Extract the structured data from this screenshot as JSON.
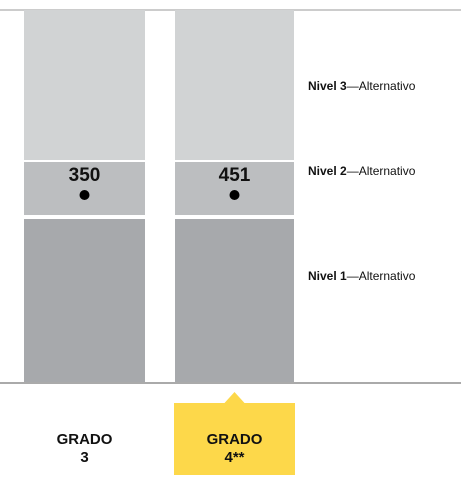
{
  "columns": [
    {
      "label": "GRADO",
      "grade": "3",
      "score": 350,
      "highlight": false
    },
    {
      "label": "GRADO",
      "grade": "4**",
      "score": 451,
      "highlight": true
    }
  ],
  "levels": [
    {
      "name": "Nivel 3",
      "suffix": "—Alternativo"
    },
    {
      "name": "Nivel 2",
      "suffix": "—Alternativo"
    },
    {
      "name": "Nivel 1",
      "suffix": "—Alternativo"
    }
  ],
  "colors": {
    "level3": "#d1d3d4",
    "level2": "#bcbec0",
    "level1": "#a7a9ac",
    "highlight": "#fdd84a"
  }
}
